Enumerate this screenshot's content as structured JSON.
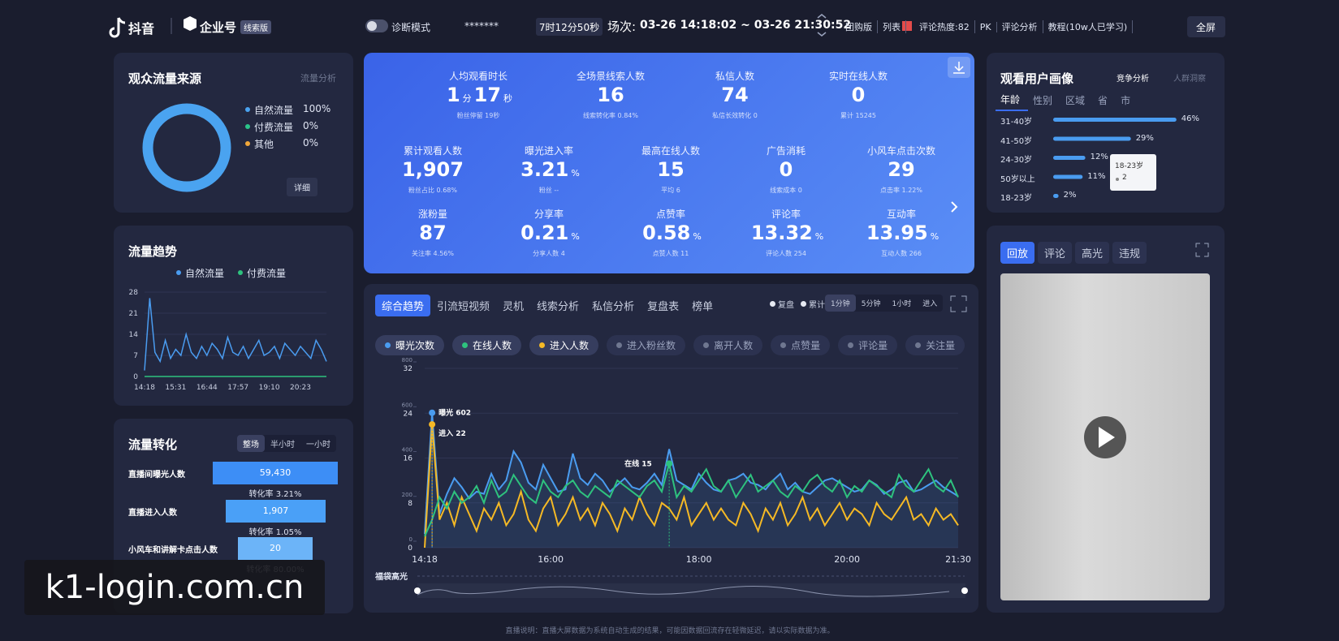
{
  "topbar": {
    "brand": "抖音",
    "org": "企业号",
    "org_tag": "线索版",
    "diag": "诊断模式",
    "account": "*******",
    "duration": "7时12分50秒",
    "session_label": "场次:",
    "session": "03-26 14:18:02 ~ 03-26 21:30:52",
    "links": [
      "团购版",
      "列表",
      "评论热度:82",
      "PK",
      "评论分析",
      "教程(10w人已学习)"
    ],
    "fullscreen": "全屏"
  },
  "traffic_source": {
    "title": "观众流量来源",
    "link": "流量分析",
    "detail": "详细",
    "items": [
      {
        "name": "自然流量",
        "value": 100,
        "label": "100%",
        "color": "#4aa3f0"
      },
      {
        "name": "付费流量",
        "value": 0,
        "label": "0%",
        "color": "#2bc48a"
      },
      {
        "name": "其他",
        "value": 0,
        "label": "0%",
        "color": "#f0a73a"
      }
    ]
  },
  "trend": {
    "title": "流量趋势",
    "chart": {
      "type": "line",
      "categories": [
        "14:18",
        null,
        null,
        null,
        null,
        null,
        "15:31",
        null,
        null,
        null,
        null,
        null,
        "16:44",
        null,
        null,
        null,
        null,
        null,
        "17:57",
        null,
        null,
        null,
        null,
        null,
        "19:10",
        null,
        null,
        null,
        null,
        null,
        "20:23",
        null,
        null,
        null,
        null,
        null
      ],
      "series": [
        {
          "name": "自然流量",
          "color": "#4a9cf0",
          "values": [
            2,
            26,
            8,
            5,
            12,
            6,
            9,
            7,
            14,
            8,
            6,
            10,
            7,
            11,
            9,
            6,
            13,
            8,
            7,
            10,
            6,
            9,
            12,
            7,
            8,
            10,
            6,
            11,
            9,
            7,
            10,
            8,
            6,
            12,
            9,
            5
          ]
        },
        {
          "name": "付费流量",
          "color": "#2ec27e",
          "values": [
            0,
            0,
            0,
            0,
            0,
            0,
            0,
            0,
            0,
            0,
            0,
            0,
            0,
            0,
            0,
            0,
            0,
            0,
            0,
            0,
            0,
            0,
            0,
            0,
            0,
            0,
            0,
            0,
            0,
            0,
            0,
            0,
            0,
            0,
            0,
            0
          ]
        }
      ],
      "ylim": [
        0,
        28
      ],
      "yticks": [
        0,
        7,
        14,
        21,
        28
      ]
    }
  },
  "conversion": {
    "title": "流量转化",
    "tabs": [
      "整场",
      "半小时",
      "一小时"
    ],
    "steps": [
      {
        "name": "直播间曝光人数",
        "value": "59,430"
      },
      {
        "name": "直播进入人数",
        "value": "1,907"
      },
      {
        "name": "小风车和讲解卡点击人数",
        "value": "20"
      }
    ],
    "rates": [
      "转化率 3.21%",
      "转化率 1.05%",
      "转化率 80.00%"
    ]
  },
  "metrics": {
    "row1": [
      {
        "label": "人均观看时长",
        "value": "1",
        "unit": "分",
        "value2": "17",
        "unit2": "秒",
        "sub": "粉丝停留 19秒"
      },
      {
        "label": "全场景线索人数",
        "value": "16",
        "sub": "线索转化率 0.84%"
      },
      {
        "label": "私信人数",
        "value": "74",
        "sub": "私信长效转化 0"
      },
      {
        "label": "实时在线人数",
        "value": "0",
        "sub": "累计 15245"
      }
    ],
    "row2": [
      {
        "label": "累计观看人数",
        "value": "1,907",
        "sub": "粉丝占比 0.68%"
      },
      {
        "label": "曝光进入率",
        "value": "3.21",
        "unit": "%",
        "sub": "粉丝 --"
      },
      {
        "label": "最高在线人数",
        "value": "15",
        "sub": "平均 6"
      },
      {
        "label": "广告消耗",
        "value": "0",
        "sub": "线索成本 0"
      },
      {
        "label": "小风车点击次数",
        "value": "29",
        "sub": "点击率 1.22%"
      }
    ],
    "row3": [
      {
        "label": "涨粉量",
        "value": "87",
        "sub": "关注率 4.56%"
      },
      {
        "label": "分享率",
        "value": "0.21",
        "unit": "%",
        "sub": "分享人数 4"
      },
      {
        "label": "点赞率",
        "value": "0.58",
        "unit": "%",
        "sub": "点赞人数 11"
      },
      {
        "label": "评论率",
        "value": "13.32",
        "unit": "%",
        "sub": "评论人数 254"
      },
      {
        "label": "互动率",
        "value": "13.95",
        "unit": "%",
        "sub": "互动人数 266"
      }
    ]
  },
  "main": {
    "tabs": [
      "综合趋势",
      "引流短视频",
      "灵机",
      "线索分析",
      "私信分析",
      "复盘表",
      "榜单"
    ],
    "modes": [
      "复盘",
      "累计"
    ],
    "intervals": [
      "1分钟",
      "5分钟",
      "1小时",
      "进入"
    ],
    "other_metrics": [
      "进入粉丝数",
      "离开人数",
      "点赞量",
      "评论量",
      "关注量"
    ],
    "highlight": "福袋高光",
    "chart": {
      "type": "line",
      "categories": [
        "14:18",
        null,
        null,
        null,
        null,
        null,
        null,
        null,
        null,
        null,
        null,
        null,
        null,
        null,
        null,
        null,
        null,
        "16:00",
        null,
        null,
        null,
        null,
        null,
        null,
        null,
        null,
        null,
        null,
        null,
        null,
        null,
        null,
        null,
        null,
        null,
        null,
        null,
        "18:00",
        null,
        null,
        null,
        null,
        null,
        null,
        null,
        null,
        null,
        null,
        null,
        null,
        null,
        null,
        null,
        null,
        null,
        null,
        null,
        "20:00",
        null,
        null,
        null,
        null,
        null,
        null,
        null,
        null,
        null,
        null,
        null,
        null,
        null,
        null,
        "21:30"
      ],
      "series": [
        {
          "name": "曝光次数",
          "color": "#4a9cf0",
          "axis": "y2",
          "values": [
            60,
            602,
            150,
            240,
            310,
            270,
            220,
            250,
            240,
            330,
            260,
            300,
            430,
            380,
            290,
            260,
            370,
            310,
            250,
            260,
            420,
            310,
            280,
            330,
            300,
            250,
            280,
            310,
            270,
            260,
            290,
            330,
            280,
            440,
            300,
            280,
            260,
            330,
            290,
            260,
            250,
            300,
            310,
            330,
            290,
            280,
            260,
            300,
            330,
            260,
            290,
            250,
            240,
            270,
            300,
            310,
            290,
            270,
            250,
            260,
            300,
            280,
            240,
            260,
            290,
            300,
            250,
            260,
            280,
            300,
            270,
            250,
            230
          ]
        },
        {
          "name": "在线人数",
          "color": "#2ec27e",
          "values": [
            2,
            5,
            9,
            7,
            10,
            8,
            9,
            11,
            8,
            12,
            9,
            10,
            13,
            11,
            9,
            8,
            12,
            10,
            9,
            11,
            12,
            10,
            9,
            11,
            10,
            9,
            12,
            11,
            10,
            9,
            11,
            12,
            10,
            15,
            9,
            11,
            10,
            12,
            14,
            11,
            10,
            12,
            9,
            11,
            13,
            10,
            11,
            12,
            10,
            9,
            11,
            10,
            12,
            13,
            11,
            10,
            12,
            9,
            11,
            10,
            12,
            11,
            10,
            9,
            13,
            11,
            10,
            12,
            14,
            11,
            10,
            12,
            9
          ]
        },
        {
          "name": "进入人数",
          "color": "#f5b925",
          "values": [
            0,
            22,
            5,
            8,
            4,
            9,
            6,
            3,
            7,
            5,
            8,
            4,
            6,
            10,
            5,
            3,
            7,
            9,
            4,
            6,
            9,
            5,
            7,
            4,
            8,
            6,
            3,
            7,
            5,
            9,
            6,
            4,
            8,
            7,
            5,
            9,
            4,
            6,
            8,
            5,
            7,
            5,
            4,
            8,
            6,
            3,
            7,
            5,
            8,
            4,
            6,
            9,
            5,
            7,
            4,
            6,
            8,
            5,
            7,
            6,
            4,
            8,
            6,
            5,
            7,
            9,
            5,
            6,
            4,
            7,
            5,
            6,
            4
          ]
        }
      ],
      "ylim": [
        0,
        32
      ],
      "yticks": [
        0,
        8,
        16,
        24,
        32
      ],
      "y2lim": [
        0,
        800
      ],
      "y2ticks": [
        0,
        200,
        400,
        600,
        800
      ],
      "grid": true,
      "annotations": [
        "曝光 602",
        "进入 22",
        "在线 15"
      ]
    }
  },
  "audience": {
    "title": "观看用户画像",
    "competitor": "竞争分析",
    "crowd": "人群洞察",
    "tabs": [
      "年龄",
      "性别",
      "区域",
      "省",
      "市"
    ],
    "ages": {
      "categories": [
        "31-40岁",
        "41-50岁",
        "24-30岁",
        "50岁以上",
        "18-23岁"
      ],
      "values": [
        46,
        29,
        12,
        11,
        2
      ],
      "value_labels": [
        "46%",
        "29%",
        "12%",
        "11%",
        "2%"
      ],
      "color": "#4a9cf0"
    },
    "tooltip": {
      "title": "18-23岁",
      "value": "2"
    }
  },
  "replay": {
    "tabs": [
      "回放",
      "评论",
      "高光",
      "违规"
    ]
  },
  "footer": "直播说明：直播大屏数据为系统自动生成的结果，可能因数据回流存在轻微延迟，请以实际数据为准。",
  "watermark": "k1-login.com.cn"
}
